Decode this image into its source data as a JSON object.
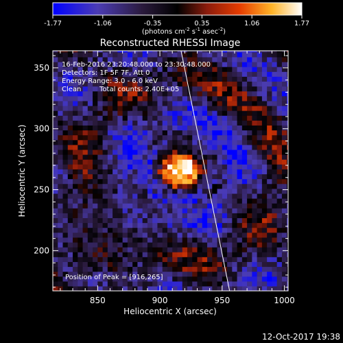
{
  "colorbar": {
    "ticks": [
      "-1.77",
      "-1.06",
      "-0.35",
      "0.35",
      "1.06",
      "1.77"
    ],
    "unit_main": "(photons cm",
    "unit_sup1": "-2",
    "unit_mid": " s",
    "unit_sup2": "-1",
    "unit_end": " asec",
    "unit_sup3": "-2",
    "unit_close": ")",
    "vmin": -1.77,
    "vmax": 1.77
  },
  "image_title": "Reconstructed RHESSI Image",
  "annotations": {
    "time_range": "16-Feb-2016 23:20:48.000 to 23:30:48.000",
    "detectors": "Detectors: 1F 5F 7F, Att 0",
    "energy": "Energy Range: 3.0 - 6.0 keV",
    "clean": "Clean",
    "total_counts": "Total counts: 2.40E+05",
    "peak": "Position of Peak = [916,265]"
  },
  "footer_timestamp": "12-Oct-2017 19:38",
  "colors": {
    "background": "#000000",
    "colormap": [
      "#0000ff",
      "#4b3cb4",
      "#2a1a3c",
      "#000000",
      "#8c1c0c",
      "#e63c00",
      "#ffb428",
      "#ffffff"
    ]
  },
  "chart_data": {
    "type": "heatmap",
    "title": "Reconstructed RHESSI Image",
    "xlabel": "Heliocentric X (arcsec)",
    "ylabel": "Heliocentric Y (arcsec)",
    "xlim": [
      814,
      1003
    ],
    "ylim": [
      167,
      364
    ],
    "xticks": [
      850,
      900,
      950,
      1000
    ],
    "yticks": [
      200,
      250,
      300,
      350
    ],
    "peak": [
      916,
      265
    ],
    "limb_line": [
      [
        917,
        364
      ],
      [
        956,
        167
      ]
    ],
    "pixel_size_arcsec": 4,
    "color_range": [
      -1.77,
      1.77
    ],
    "grid": false
  }
}
